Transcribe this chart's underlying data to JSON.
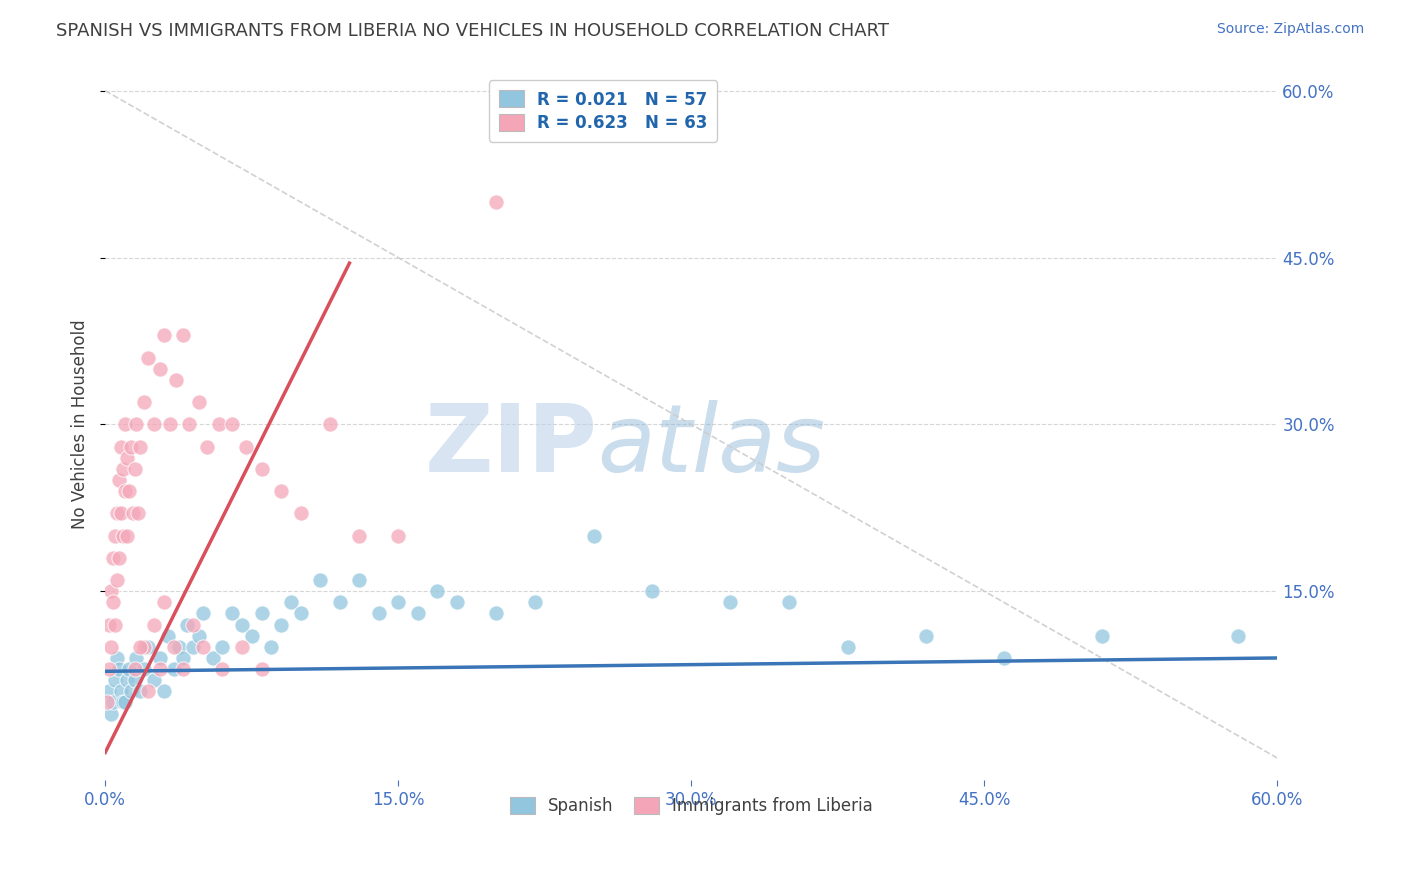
{
  "title": "SPANISH VS IMMIGRANTS FROM LIBERIA NO VEHICLES IN HOUSEHOLD CORRELATION CHART",
  "source": "Source: ZipAtlas.com",
  "ylabel": "No Vehicles in Household",
  "xlim": [
    0.0,
    0.6
  ],
  "ylim": [
    -0.02,
    0.62
  ],
  "xtick_labels": [
    "0.0%",
    "15.0%",
    "30.0%",
    "45.0%",
    "60.0%"
  ],
  "xtick_vals": [
    0.0,
    0.15,
    0.3,
    0.45,
    0.6
  ],
  "ytick_labels_right": [
    "60.0%",
    "45.0%",
    "30.0%",
    "15.0%"
  ],
  "ytick_vals_right": [
    0.6,
    0.45,
    0.3,
    0.15
  ],
  "grid_color": "#cccccc",
  "background_color": "#ffffff",
  "watermark_zip": "ZIP",
  "watermark_atlas": "atlas",
  "legend_R_blue": "0.021",
  "legend_N_blue": "57",
  "legend_R_pink": "0.623",
  "legend_N_pink": "63",
  "blue_color": "#92c5de",
  "pink_color": "#f4a6b8",
  "blue_line_color": "#3975b7",
  "pink_line_color": "#d94f5c",
  "title_color": "#404040",
  "label_color": "#4472c4",
  "legend_text_color": "#2166ac",
  "blue_trend_x": [
    0.0,
    0.6
  ],
  "blue_trend_y": [
    0.078,
    0.09
  ],
  "pink_trend_x": [
    0.0,
    0.125
  ],
  "pink_trend_y": [
    0.005,
    0.445
  ],
  "dashed_line_x": [
    0.0,
    0.6
  ],
  "dashed_line_y": [
    0.6,
    0.0
  ],
  "legend_labels": [
    "Spanish",
    "Immigrants from Liberia"
  ],
  "scatter_blue_x": [
    0.002,
    0.003,
    0.004,
    0.005,
    0.006,
    0.007,
    0.008,
    0.009,
    0.01,
    0.011,
    0.012,
    0.013,
    0.015,
    0.016,
    0.018,
    0.02,
    0.022,
    0.025,
    0.028,
    0.03,
    0.032,
    0.035,
    0.038,
    0.04,
    0.042,
    0.045,
    0.048,
    0.05,
    0.055,
    0.06,
    0.065,
    0.07,
    0.075,
    0.08,
    0.085,
    0.09,
    0.095,
    0.1,
    0.11,
    0.12,
    0.13,
    0.14,
    0.15,
    0.16,
    0.17,
    0.18,
    0.2,
    0.22,
    0.25,
    0.28,
    0.32,
    0.35,
    0.38,
    0.42,
    0.46,
    0.51,
    0.58
  ],
  "scatter_blue_y": [
    0.06,
    0.04,
    0.05,
    0.07,
    0.09,
    0.08,
    0.06,
    0.05,
    0.05,
    0.07,
    0.08,
    0.06,
    0.07,
    0.09,
    0.06,
    0.08,
    0.1,
    0.07,
    0.09,
    0.06,
    0.11,
    0.08,
    0.1,
    0.09,
    0.12,
    0.1,
    0.11,
    0.13,
    0.09,
    0.1,
    0.13,
    0.12,
    0.11,
    0.13,
    0.1,
    0.12,
    0.14,
    0.13,
    0.16,
    0.14,
    0.16,
    0.13,
    0.14,
    0.13,
    0.15,
    0.14,
    0.13,
    0.14,
    0.2,
    0.15,
    0.14,
    0.14,
    0.1,
    0.11,
    0.09,
    0.11,
    0.11
  ],
  "scatter_pink_x": [
    0.001,
    0.002,
    0.002,
    0.003,
    0.003,
    0.004,
    0.004,
    0.005,
    0.005,
    0.006,
    0.006,
    0.007,
    0.007,
    0.008,
    0.008,
    0.009,
    0.009,
    0.01,
    0.01,
    0.011,
    0.011,
    0.012,
    0.013,
    0.014,
    0.015,
    0.016,
    0.017,
    0.018,
    0.02,
    0.022,
    0.025,
    0.028,
    0.03,
    0.033,
    0.036,
    0.04,
    0.043,
    0.048,
    0.052,
    0.058,
    0.065,
    0.072,
    0.08,
    0.09,
    0.1,
    0.115,
    0.13,
    0.15,
    0.02,
    0.025,
    0.03,
    0.035,
    0.04,
    0.045,
    0.05,
    0.06,
    0.07,
    0.08,
    0.015,
    0.018,
    0.022,
    0.028,
    0.2
  ],
  "scatter_pink_y": [
    0.05,
    0.08,
    0.12,
    0.1,
    0.15,
    0.14,
    0.18,
    0.12,
    0.2,
    0.16,
    0.22,
    0.18,
    0.25,
    0.22,
    0.28,
    0.2,
    0.26,
    0.24,
    0.3,
    0.2,
    0.27,
    0.24,
    0.28,
    0.22,
    0.26,
    0.3,
    0.22,
    0.28,
    0.32,
    0.36,
    0.3,
    0.35,
    0.38,
    0.3,
    0.34,
    0.38,
    0.3,
    0.32,
    0.28,
    0.3,
    0.3,
    0.28,
    0.26,
    0.24,
    0.22,
    0.3,
    0.2,
    0.2,
    0.1,
    0.12,
    0.14,
    0.1,
    0.08,
    0.12,
    0.1,
    0.08,
    0.1,
    0.08,
    0.08,
    0.1,
    0.06,
    0.08,
    0.5
  ]
}
